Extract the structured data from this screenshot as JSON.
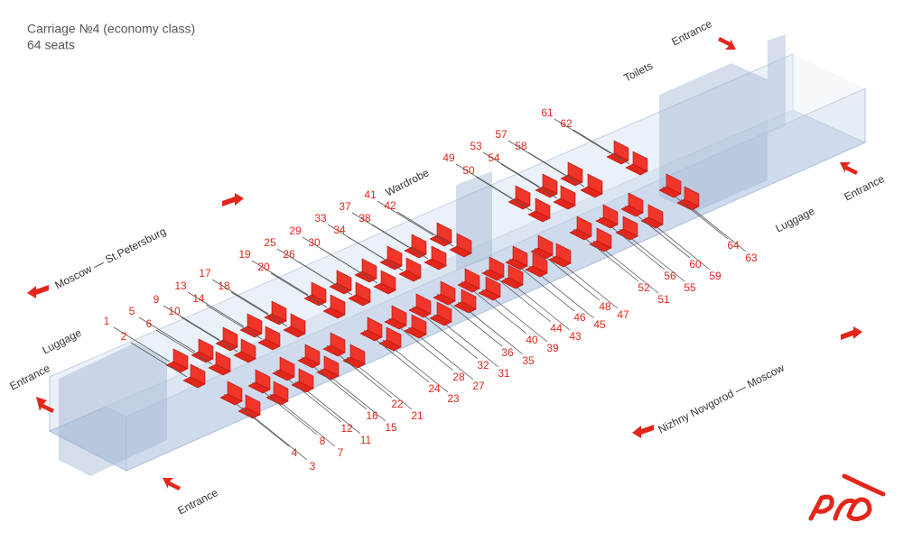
{
  "header": {
    "title": "Carriage №4 (economy class)",
    "subtitle": "64 seats"
  },
  "areas": [
    "Entrance",
    "Entrance",
    "Entrance",
    "Entrance",
    "Toilets",
    "Luggage",
    "Luggage",
    "Wardrobe"
  ],
  "directions": [
    "Moscow — St.Petersburg",
    "Nizhny Novgorod — Moscow"
  ],
  "seats": [
    "1",
    "2",
    "3",
    "4",
    "5",
    "6",
    "7",
    "8",
    "9",
    "10",
    "11",
    "12",
    "13",
    "14",
    "15",
    "16",
    "17",
    "18",
    "19",
    "20",
    "21",
    "22",
    "23",
    "24",
    "25",
    "26",
    "27",
    "28",
    "29",
    "30",
    "31",
    "32",
    "33",
    "34",
    "35",
    "36",
    "37",
    "38",
    "39",
    "40",
    "41",
    "42",
    "43",
    "44",
    "45",
    "46",
    "47",
    "48",
    "49",
    "50",
    "51",
    "52",
    "53",
    "54",
    "55",
    "56",
    "57",
    "58",
    "59",
    "60",
    "61",
    "62",
    "63",
    "64"
  ]
}
